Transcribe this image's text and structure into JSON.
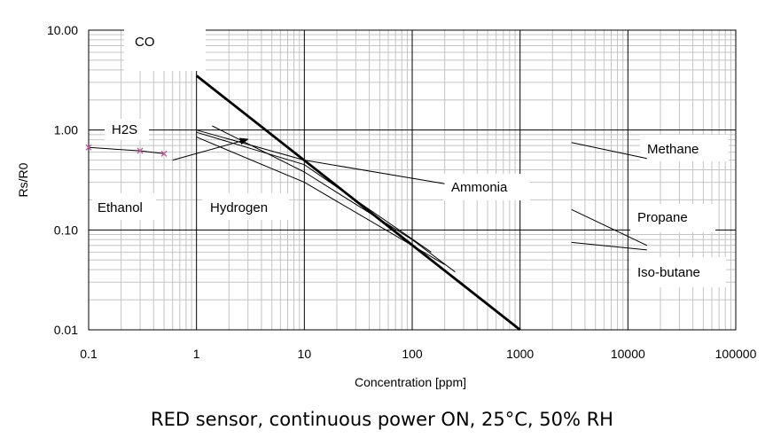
{
  "chart_data": {
    "type": "line",
    "title": "",
    "caption": "RED sensor, continuous power ON, 25°C, 50% RH",
    "xlabel": "Concentration [ppm]",
    "ylabel": "Rs/R0",
    "x_scale": "log",
    "y_scale": "log",
    "xlim": [
      0.1,
      100000
    ],
    "ylim": [
      0.01,
      10
    ],
    "x_ticks": [
      "0.1",
      "1",
      "10",
      "100",
      "1000",
      "10000",
      "100000"
    ],
    "y_ticks": [
      "0.01",
      "0.10",
      "1.00",
      "10.00"
    ],
    "grid": true,
    "series": [
      {
        "name": "CO",
        "x": [
          1,
          1000
        ],
        "y": [
          3.5,
          0.01
        ],
        "color": "#000000",
        "emphasis": "bold"
      },
      {
        "name": "H2S",
        "x": [
          0.1,
          0.3,
          0.5
        ],
        "y": [
          0.67,
          0.62,
          0.58
        ],
        "color": "#000000",
        "marker_color": "#c060a0"
      },
      {
        "name": "Ethanol",
        "x": [
          1,
          10,
          100,
          200
        ],
        "y": [
          0.85,
          0.3,
          0.07,
          0.045
        ],
        "color": "#000000"
      },
      {
        "name": "Hydrogen",
        "x": [
          1.4,
          10,
          100,
          250
        ],
        "y": [
          1.1,
          0.38,
          0.08,
          0.038
        ],
        "color": "#000000"
      },
      {
        "name": "Ammonia",
        "x": [
          1,
          10,
          200
        ],
        "y": [
          1.0,
          0.5,
          0.29
        ],
        "color": "#000000"
      },
      {
        "name": "Methane",
        "x": [
          3000,
          15000
        ],
        "y": [
          0.75,
          0.52
        ],
        "color": "#000000"
      },
      {
        "name": "Propane",
        "x": [
          3000,
          15000
        ],
        "y": [
          0.16,
          0.07
        ],
        "color": "#000000"
      },
      {
        "name": "Iso-butane",
        "x": [
          3000,
          15000
        ],
        "y": [
          0.075,
          0.063
        ],
        "color": "#000000"
      }
    ],
    "unnamed_series": [
      {
        "x": [
          1,
          10,
          150
        ],
        "y": [
          0.95,
          0.45,
          0.06
        ]
      }
    ],
    "annotations": [
      {
        "type": "arrow",
        "from": {
          "x": 0.6,
          "y": 0.5
        },
        "to": {
          "x": 3,
          "y": 0.81
        }
      }
    ]
  }
}
